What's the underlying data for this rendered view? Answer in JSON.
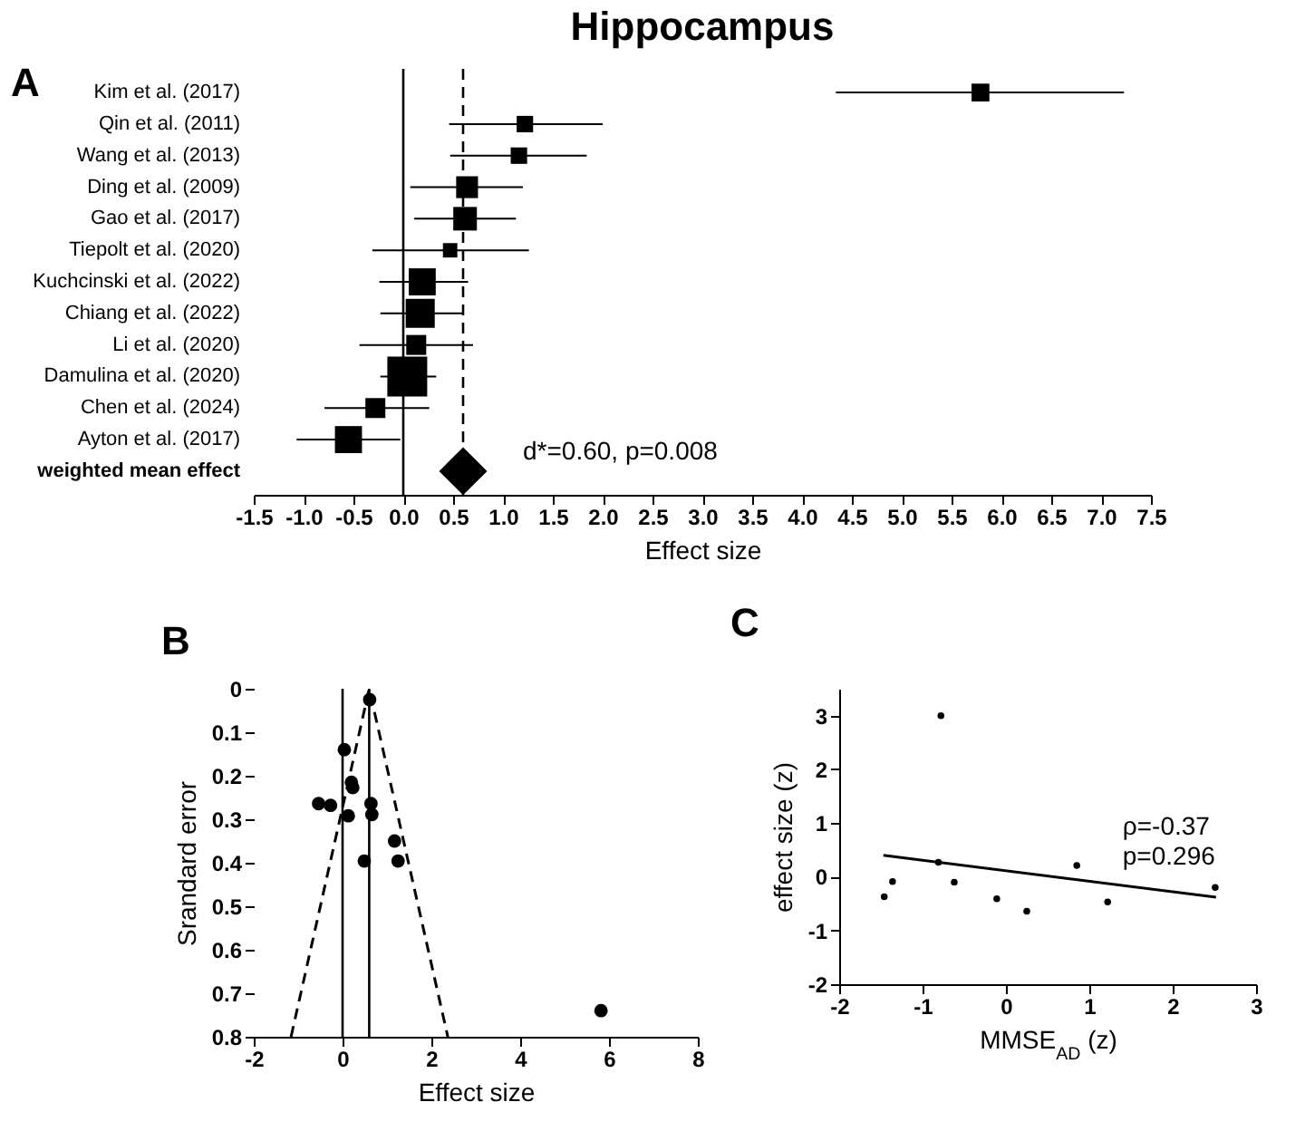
{
  "chart_data": [
    {
      "type": "bubble",
      "title": "Hippocampus",
      "xlabel": "Effect size",
      "annotations": [
        "A",
        "d*=0.60, p=0.008"
      ],
      "orientation": "horizontal",
      "marker": "square",
      "categories": [
        "Kim et al. (2017)",
        "Qin et al. (2011)",
        "Wang et al. (2013)",
        "Ding et al. (2009)",
        "Gao et al. (2017)",
        "Tiepolt et al. (2020)",
        "Kuchcinski et al. (2022)",
        "Chiang et al. (2022)",
        "Li et al. (2020)",
        "Damulina et al. (2020)",
        "Chen et al. (2024)",
        "Ayton et al. (2017)",
        "weighted mean effect"
      ],
      "xlim": [
        -1.5,
        7.5
      ],
      "xticks": [
        -1.5,
        {
          "value": -1,
          "label": "-1.0"
        },
        -0.5,
        {
          "value": 0,
          "label": "0.0"
        },
        0.5,
        {
          "value": 1,
          "label": "1.0"
        },
        1.5,
        {
          "value": 2,
          "label": "2.0"
        },
        2.5,
        {
          "value": 3,
          "label": "3.0"
        },
        3.5,
        {
          "value": 4,
          "label": "4.0"
        },
        4.5,
        {
          "value": 5,
          "label": "5.0"
        },
        5.5,
        {
          "value": 6,
          "label": "6.0"
        },
        6.5,
        {
          "value": 7,
          "label": "7.0"
        },
        7.5
      ],
      "ref_lines": [
        {
          "axis": "x",
          "value": 0
        },
        {
          "axis": "x",
          "value": 0.6,
          "line_style": "dashed"
        }
      ],
      "series": [
        {
          "color": "#000000",
          "values": [
            5.79,
            1.22,
            1.16,
            0.64,
            0.62,
            0.47,
            0.19,
            0.17,
            0.13,
            0.04,
            -0.28,
            -0.55,
            null
          ],
          "sizes": [
            0.2,
            0.17,
            0.17,
            0.3,
            0.35,
            0.13,
            0.46,
            0.53,
            0.25,
            1,
            0.25,
            0.46,
            null
          ],
          "errors": [
            [
              4.34,
              7.23
            ],
            [
              0.46,
              2.0
            ],
            [
              0.47,
              1.84
            ],
            [
              0.07,
              1.2
            ],
            [
              0.11,
              1.13
            ],
            [
              -0.31,
              1.26
            ],
            [
              -0.24,
              0.65
            ],
            [
              -0.23,
              0.6
            ],
            [
              -0.44,
              0.7
            ],
            [
              -0.23,
              0.33
            ],
            [
              -0.79,
              0.26
            ],
            [
              -1.07,
              -0.03
            ],
            null
          ]
        },
        {
          "type": "scatter",
          "marker": "diamond",
          "color": "#000000",
          "values": [
            null,
            null,
            null,
            null,
            null,
            null,
            null,
            null,
            null,
            null,
            null,
            null,
            0.6
          ]
        }
      ]
    },
    {
      "type": "scatter",
      "xlabel": "Effect size",
      "ylabel": "Srandard error",
      "annotations": [
        "B"
      ],
      "xlim": [
        -2,
        8
      ],
      "xticks": [
        -2,
        0,
        2,
        4,
        6,
        8
      ],
      "ylim": [
        0.8,
        0
      ],
      "yticks": [
        0,
        0.1,
        0.2,
        0.3,
        0.4,
        0.5,
        0.6,
        0.7,
        0.8
      ],
      "marker": "circle",
      "ref_lines": [
        {
          "axis": "x",
          "value": 0
        },
        {
          "axis": "x",
          "value": 0.6
        }
      ],
      "series": [
        {
          "color": "#000000",
          "x": [
            0.61,
            0.04,
            0.2,
            0.23,
            -0.54,
            -0.27,
            0.64,
            0.13,
            0.66,
            1.17,
            0.49,
            1.25,
            5.82
          ],
          "values": [
            0.025,
            0.14,
            0.215,
            0.227,
            0.264,
            0.268,
            0.264,
            0.292,
            0.289,
            0.35,
            0.396,
            0.396,
            0.74
          ]
        },
        {
          "type": "line",
          "line_style": "dashed",
          "marker": "none",
          "color": "#000000",
          "x": [
            -1.16,
            0.6,
            2.37
          ],
          "values": [
            0.8,
            0,
            0.8
          ]
        }
      ]
    },
    {
      "type": "scatter",
      "xlabel": "MMSE$_{AD}$ (z)",
      "ylabel": "effect size (z)",
      "annotations": [
        "C",
        "ρ=-0.37",
        "p=0.296"
      ],
      "xlim": [
        -2,
        3
      ],
      "xticks": [
        -2,
        -1,
        0,
        1,
        2,
        3
      ],
      "ylim": [
        -2,
        3.5
      ],
      "yticks": [
        -2,
        -1,
        0,
        1,
        2,
        3
      ],
      "marker": "circle",
      "series": [
        {
          "color": "#000000",
          "x": [
            -1.46,
            -1.36,
            -0.78,
            -0.81,
            -0.62,
            -0.11,
            0.25,
            0.85,
            1.22,
            2.51
          ],
          "values": [
            -0.37,
            -0.09,
            3.0,
            0.27,
            -0.1,
            -0.41,
            -0.64,
            0.21,
            -0.47,
            -0.2
          ]
        },
        {
          "type": "line",
          "marker": "none",
          "color": "#000000",
          "x": [
            -1.47,
            2.52
          ],
          "values": [
            0.4,
            -0.38
          ]
        }
      ]
    }
  ]
}
